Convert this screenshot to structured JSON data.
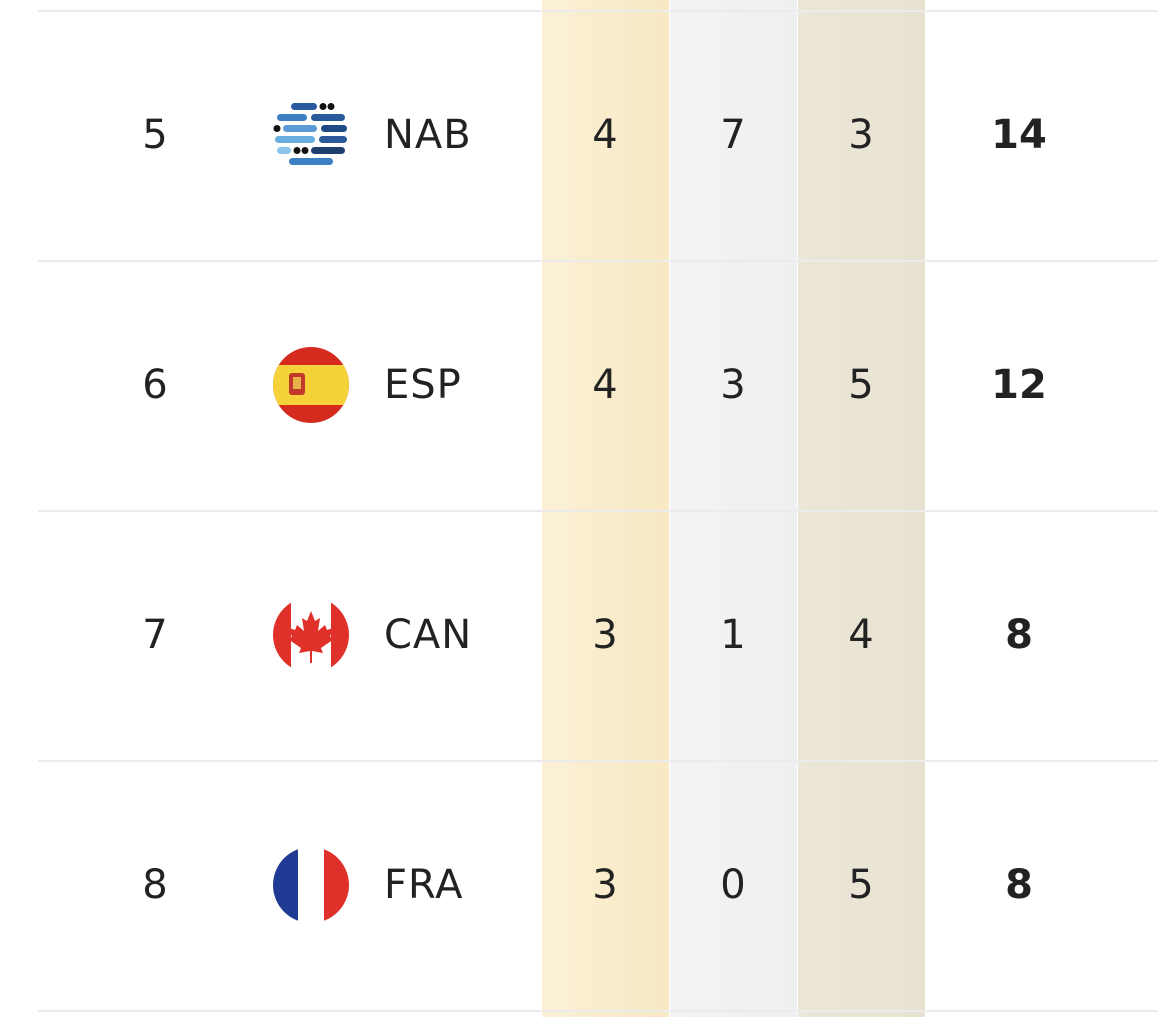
{
  "table": {
    "rows": [
      [
        5,
        "NAB",
        4,
        7,
        3,
        14
      ],
      [
        6,
        "ESP",
        4,
        3,
        5,
        12
      ],
      [
        7,
        "CAN",
        3,
        1,
        4,
        8
      ],
      [
        8,
        "FRA",
        3,
        0,
        5,
        8
      ]
    ]
  }
}
